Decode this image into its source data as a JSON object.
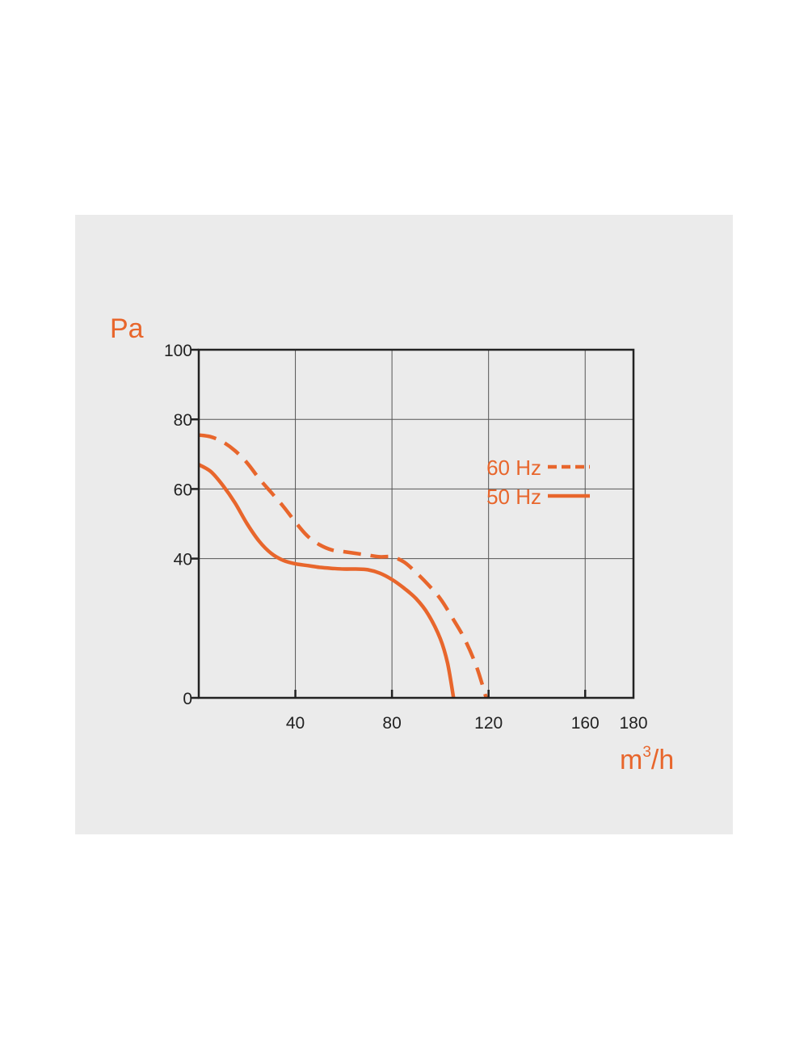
{
  "chart_data": {
    "type": "line",
    "ylabel": "Pa",
    "xlabel_main": "m",
    "xlabel_sup": "3",
    "xlabel_tail": "/h",
    "xlim": [
      0,
      180
    ],
    "ylim": [
      0,
      100
    ],
    "x_ticks": [
      40,
      80,
      120,
      160,
      180
    ],
    "y_ticks": [
      0,
      40,
      60,
      80,
      100
    ],
    "grid": true,
    "legend_position": "right",
    "accent_color": "#e8662c",
    "series": [
      {
        "name": "60 Hz",
        "style": "dashed",
        "x": [
          0,
          5,
          10,
          15,
          20,
          25,
          30,
          35,
          40,
          45,
          50,
          55,
          60,
          65,
          70,
          75,
          80,
          85,
          90,
          95,
          100,
          105,
          110,
          115,
          119
        ],
        "y": [
          75.5,
          75,
          73.5,
          71,
          67.5,
          63,
          59,
          55,
          50.5,
          46.5,
          44,
          42.5,
          42,
          41.5,
          41,
          40.5,
          40.5,
          39,
          36,
          32.5,
          28.5,
          23,
          17,
          9,
          0
        ]
      },
      {
        "name": "50 Hz",
        "style": "solid",
        "x": [
          0,
          5,
          10,
          15,
          20,
          25,
          30,
          35,
          40,
          45,
          50,
          55,
          60,
          65,
          70,
          75,
          80,
          85,
          90,
          95,
          100,
          103,
          105.5
        ],
        "y": [
          67,
          65,
          61,
          56,
          50,
          45,
          41.5,
          39.5,
          38.5,
          38,
          37.5,
          37.2,
          37,
          37,
          36.8,
          35.8,
          34,
          31.5,
          28.5,
          24,
          17,
          10,
          0
        ]
      }
    ]
  }
}
